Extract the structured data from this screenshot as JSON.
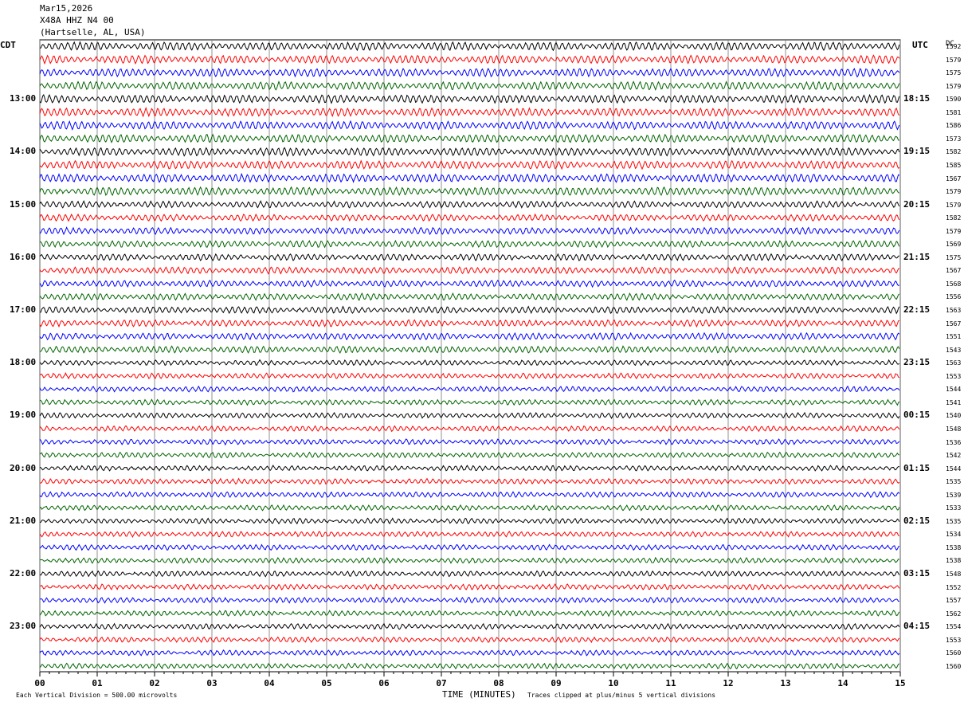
{
  "header": {
    "date": "Mar15,2026",
    "station": "X48A HHZ N4 00",
    "location": "(Hartselle, AL, USA)"
  },
  "left_tz": "CDT",
  "right_tz": "UTC",
  "dc_label": "DC",
  "chart_data": {
    "type": "line",
    "title": "Mar15,2026 X48A HHZ N4 00 (Hartselle, AL, USA)",
    "xlabel": "TIME (MINUTES)",
    "x_ticks": [
      "00",
      "01",
      "02",
      "03",
      "04",
      "05",
      "06",
      "07",
      "08",
      "09",
      "10",
      "11",
      "12",
      "13",
      "14",
      "15"
    ],
    "xlim": [
      0,
      15
    ],
    "trace_colors": [
      "#000000",
      "#ff0000",
      "#0000ff",
      "#006400"
    ],
    "rows_per_hour": 4,
    "left_hour_labels": [
      "13:00",
      "14:00",
      "15:00",
      "16:00",
      "17:00",
      "18:00",
      "19:00",
      "20:00",
      "21:00",
      "22:00",
      "23:00"
    ],
    "right_hour_labels": [
      "18:15",
      "19:15",
      "20:15",
      "21:15",
      "22:15",
      "23:15",
      "00:15",
      "01:15",
      "02:15",
      "03:15",
      "04:15"
    ],
    "dc_offsets": [
      1592,
      1579,
      1575,
      1579,
      1590,
      1581,
      1586,
      1573,
      1582,
      1585,
      1567,
      1579,
      1579,
      1582,
      1579,
      1569,
      1575,
      1567,
      1568,
      1556,
      1563,
      1567,
      1551,
      1543,
      1563,
      1553,
      1544,
      1541,
      1540,
      1548,
      1536,
      1542,
      1544,
      1535,
      1539,
      1533,
      1535,
      1534,
      1538,
      1538,
      1548,
      1552,
      1557,
      1562,
      1554,
      1553,
      1560,
      1560
    ],
    "grid": "vertical-minute-lines"
  },
  "footer": {
    "scale": "Each Vertical Division =  500.00 microvolts",
    "clip": "Traces clipped at plus/minus 5 vertical divisions"
  }
}
